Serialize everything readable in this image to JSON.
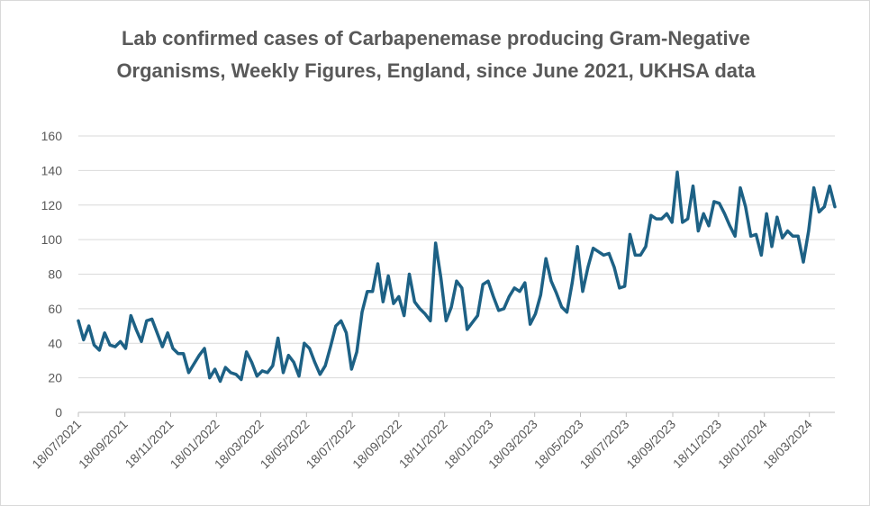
{
  "chart_data": {
    "type": "line",
    "title": "Lab confirmed cases of Carbapenemase producing Gram-Negative Organisms, Weekly Figures, England, since June 2021, UKHSA data",
    "x": [
      "2021-07-18",
      "2021-07-25",
      "2021-08-01",
      "2021-08-08",
      "2021-08-15",
      "2021-08-22",
      "2021-08-29",
      "2021-09-05",
      "2021-09-12",
      "2021-09-19",
      "2021-09-26",
      "2021-10-03",
      "2021-10-10",
      "2021-10-17",
      "2021-10-24",
      "2021-10-31",
      "2021-11-07",
      "2021-11-14",
      "2021-11-21",
      "2021-11-28",
      "2021-12-05",
      "2021-12-12",
      "2021-12-19",
      "2021-12-26",
      "2022-01-02",
      "2022-01-09",
      "2022-01-16",
      "2022-01-23",
      "2022-01-30",
      "2022-02-06",
      "2022-02-13",
      "2022-02-20",
      "2022-02-27",
      "2022-03-06",
      "2022-03-13",
      "2022-03-20",
      "2022-03-27",
      "2022-04-03",
      "2022-04-10",
      "2022-04-17",
      "2022-04-24",
      "2022-05-01",
      "2022-05-08",
      "2022-05-15",
      "2022-05-22",
      "2022-05-29",
      "2022-06-05",
      "2022-06-12",
      "2022-06-19",
      "2022-06-26",
      "2022-07-03",
      "2022-07-10",
      "2022-07-17",
      "2022-07-24",
      "2022-07-31",
      "2022-08-07",
      "2022-08-14",
      "2022-08-21",
      "2022-08-28",
      "2022-09-04",
      "2022-09-11",
      "2022-09-18",
      "2022-09-25",
      "2022-10-02",
      "2022-10-09",
      "2022-10-16",
      "2022-10-23",
      "2022-10-30",
      "2022-11-06",
      "2022-11-13",
      "2022-11-20",
      "2022-11-27",
      "2022-12-04",
      "2022-12-11",
      "2022-12-18",
      "2022-12-25",
      "2023-01-01",
      "2023-01-08",
      "2023-01-15",
      "2023-01-22",
      "2023-01-29",
      "2023-02-05",
      "2023-02-12",
      "2023-02-19",
      "2023-02-26",
      "2023-03-05",
      "2023-03-12",
      "2023-03-19",
      "2023-03-26",
      "2023-04-02",
      "2023-04-09",
      "2023-04-16",
      "2023-04-23",
      "2023-04-30",
      "2023-05-07",
      "2023-05-14",
      "2023-05-21",
      "2023-05-28",
      "2023-06-04",
      "2023-06-11",
      "2023-06-18",
      "2023-06-25",
      "2023-07-02",
      "2023-07-09",
      "2023-07-16",
      "2023-07-23",
      "2023-07-30",
      "2023-08-06",
      "2023-08-13",
      "2023-08-20",
      "2023-08-27",
      "2023-09-03",
      "2023-09-10",
      "2023-09-17",
      "2023-09-24",
      "2023-10-01",
      "2023-10-08",
      "2023-10-15",
      "2023-10-22",
      "2023-10-29",
      "2023-11-05",
      "2023-11-12",
      "2023-11-19",
      "2023-11-26",
      "2023-12-03",
      "2023-12-10",
      "2023-12-17",
      "2023-12-24",
      "2023-12-31",
      "2024-01-07",
      "2024-01-14",
      "2024-01-21",
      "2024-01-28",
      "2024-02-04",
      "2024-02-11",
      "2024-02-18",
      "2024-02-25",
      "2024-03-03",
      "2024-03-10",
      "2024-03-17",
      "2024-03-24",
      "2024-03-31",
      "2024-04-07",
      "2024-04-14",
      "2024-04-21"
    ],
    "values": [
      53,
      42,
      50,
      39,
      36,
      46,
      39,
      38,
      41,
      37,
      56,
      48,
      41,
      53,
      54,
      46,
      38,
      46,
      37,
      34,
      34,
      23,
      28,
      33,
      37,
      20,
      25,
      18,
      26,
      23,
      22,
      19,
      35,
      29,
      21,
      24,
      23,
      27,
      43,
      23,
      33,
      29,
      21,
      40,
      37,
      29,
      22,
      27,
      38,
      50,
      53,
      46,
      25,
      35,
      58,
      70,
      70,
      86,
      64,
      79,
      63,
      67,
      56,
      80,
      64,
      60,
      57,
      53,
      98,
      78,
      53,
      61,
      76,
      72,
      48,
      52,
      56,
      74,
      76,
      67,
      59,
      60,
      67,
      72,
      70,
      75,
      51,
      57,
      68,
      89,
      76,
      69,
      61,
      58,
      75,
      96,
      70,
      84,
      95,
      93,
      91,
      92,
      84,
      72,
      73,
      103,
      91,
      91,
      96,
      114,
      112,
      112,
      115,
      110,
      139,
      110,
      112,
      131,
      105,
      115,
      108,
      122,
      121,
      115,
      108,
      102,
      130,
      119,
      102,
      103,
      91,
      115,
      96,
      113,
      101,
      105,
      102,
      102,
      87,
      105,
      130,
      116,
      119,
      131,
      119
    ],
    "color": "#1d6185",
    "xlim": [
      "2021-07-18",
      "2024-04-21"
    ],
    "xticks": [
      {
        "value": "2021-07-18",
        "label": "18/07/2021"
      },
      {
        "value": "2021-09-18",
        "label": "18/09/2021"
      },
      {
        "value": "2021-11-18",
        "label": "18/11/2021"
      },
      {
        "value": "2022-01-18",
        "label": "18/01/2022"
      },
      {
        "value": "2022-03-18",
        "label": "18/03/2022"
      },
      {
        "value": "2022-05-18",
        "label": "18/05/2022"
      },
      {
        "value": "2022-07-18",
        "label": "18/07/2022"
      },
      {
        "value": "2022-09-18",
        "label": "18/09/2022"
      },
      {
        "value": "2022-11-18",
        "label": "18/11/2022"
      },
      {
        "value": "2023-01-18",
        "label": "18/01/2023"
      },
      {
        "value": "2023-03-18",
        "label": "18/03/2023"
      },
      {
        "value": "2023-05-18",
        "label": "18/05/2023"
      },
      {
        "value": "2023-07-18",
        "label": "18/07/2023"
      },
      {
        "value": "2023-09-18",
        "label": "18/09/2023"
      },
      {
        "value": "2023-11-18",
        "label": "18/11/2023"
      },
      {
        "value": "2024-01-18",
        "label": "18/01/2024"
      },
      {
        "value": "2024-03-18",
        "label": "18/03/2024"
      }
    ],
    "ylim": [
      0,
      160
    ],
    "yticks": [
      0,
      20,
      40,
      60,
      80,
      100,
      120,
      140,
      160
    ],
    "grid": true
  }
}
